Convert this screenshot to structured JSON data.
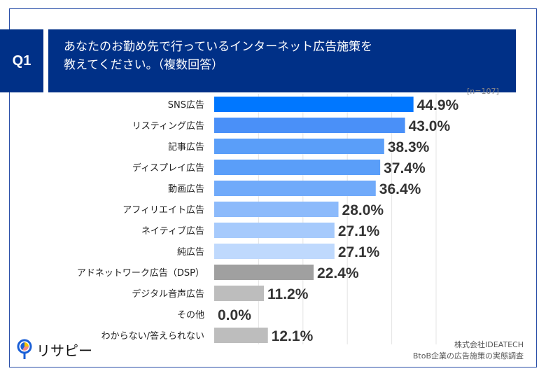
{
  "header": {
    "badge": "Q1",
    "title_line1": "あなたのお勤め先で行っているインターネット広告施策を",
    "title_line2": "教えてください。（複数回答）"
  },
  "sample_size": "[n=107]",
  "source": {
    "company": "株式会社IDEATECH",
    "survey": "BtoB企業の広告施策の実態調査"
  },
  "logo": {
    "text": "リサピー"
  },
  "chart_data": {
    "type": "bar",
    "orientation": "horizontal",
    "categories": [
      "SNS広告",
      "リスティング広告",
      "記事広告",
      "ディスプレイ広告",
      "動画広告",
      "アフィリエイト広告",
      "ネイティブ広告",
      "純広告",
      "アドネットワーク広告（DSP）",
      "デジタル音声広告",
      "その他",
      "わからない/答えられない"
    ],
    "values": [
      44.9,
      43.0,
      38.3,
      37.4,
      36.4,
      28.0,
      27.1,
      27.1,
      22.4,
      11.2,
      0.0,
      12.1
    ],
    "labels": [
      "44.9%",
      "43.0%",
      "38.3%",
      "37.4%",
      "36.4%",
      "28.0%",
      "27.1%",
      "27.1%",
      "22.4%",
      "11.2%",
      "0.0%",
      "12.1%"
    ],
    "colors": [
      "#0077ff",
      "#4a90f8",
      "#5a9ef9",
      "#5a9ef9",
      "#70aafa",
      "#8cbafb",
      "#a6cafc",
      "#bfd9fd",
      "#a0a0a0",
      "#bdbdbd",
      "#bdbdbd",
      "#bdbdbd"
    ],
    "xlim": [
      0,
      50
    ],
    "grid": true,
    "gridlines": [
      10,
      20,
      30,
      40,
      50
    ]
  }
}
